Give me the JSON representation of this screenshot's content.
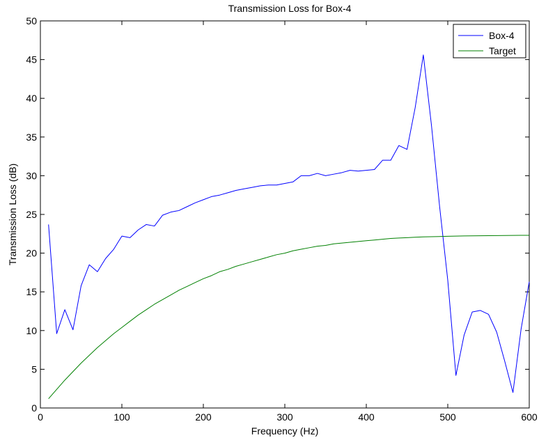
{
  "chart_data": {
    "type": "line",
    "title": "Transmission Loss for Box-4",
    "xlabel": "Frequency (Hz)",
    "ylabel": "Transmission Loss (dB)",
    "xlim": [
      0,
      600
    ],
    "ylim": [
      0,
      50
    ],
    "xticks": [
      0,
      100,
      200,
      300,
      400,
      500,
      600
    ],
    "yticks": [
      0,
      5,
      10,
      15,
      20,
      25,
      30,
      35,
      40,
      45,
      50
    ],
    "grid": false,
    "legend_position": "top-right",
    "series": [
      {
        "name": "Box-4",
        "color": "#0000ff",
        "x": [
          10,
          20,
          30,
          40,
          50,
          60,
          70,
          80,
          90,
          100,
          110,
          120,
          130,
          140,
          150,
          160,
          170,
          180,
          190,
          200,
          210,
          220,
          230,
          240,
          250,
          260,
          270,
          280,
          290,
          300,
          310,
          320,
          330,
          340,
          350,
          360,
          370,
          380,
          390,
          400,
          410,
          420,
          430,
          440,
          450,
          460,
          470,
          480,
          490,
          500,
          510,
          520,
          530,
          540,
          550,
          560,
          570,
          580,
          590,
          600
        ],
        "y": [
          23.7,
          9.6,
          12.7,
          10.1,
          15.8,
          18.5,
          17.6,
          19.3,
          20.5,
          22.2,
          22.0,
          23.0,
          23.7,
          23.5,
          24.9,
          25.3,
          25.5,
          26.0,
          26.5,
          26.9,
          27.3,
          27.5,
          27.8,
          28.1,
          28.3,
          28.5,
          28.7,
          28.8,
          28.8,
          29.0,
          29.2,
          30.0,
          30.0,
          30.3,
          30.0,
          30.2,
          30.4,
          30.7,
          30.6,
          30.7,
          30.8,
          32.0,
          32.0,
          33.9,
          33.4,
          38.8,
          45.6,
          36.5,
          26.0,
          16.5,
          4.2,
          9.4,
          12.4,
          12.6,
          12.1,
          9.8,
          6.0,
          2.0,
          10.2,
          16.3
        ]
      },
      {
        "name": "Target",
        "color": "#008000",
        "x": [
          10,
          20,
          30,
          40,
          50,
          60,
          70,
          80,
          90,
          100,
          110,
          120,
          130,
          140,
          150,
          160,
          170,
          180,
          190,
          200,
          210,
          220,
          230,
          240,
          250,
          260,
          270,
          280,
          290,
          300,
          310,
          320,
          330,
          340,
          350,
          360,
          370,
          380,
          390,
          400,
          410,
          420,
          430,
          440,
          450,
          460,
          470,
          480,
          490,
          500,
          510,
          520,
          530,
          540,
          550,
          560,
          570,
          580,
          590,
          600
        ],
        "y": [
          1.2,
          2.4,
          3.6,
          4.7,
          5.8,
          6.8,
          7.8,
          8.7,
          9.6,
          10.4,
          11.2,
          12.0,
          12.7,
          13.4,
          14.0,
          14.6,
          15.2,
          15.7,
          16.2,
          16.7,
          17.1,
          17.6,
          17.9,
          18.3,
          18.6,
          18.9,
          19.2,
          19.5,
          19.8,
          20.0,
          20.3,
          20.5,
          20.7,
          20.9,
          21.0,
          21.2,
          21.3,
          21.4,
          21.5,
          21.6,
          21.7,
          21.8,
          21.9,
          21.95,
          22.0,
          22.05,
          22.1,
          22.12,
          22.15,
          22.18,
          22.2,
          22.22,
          22.24,
          22.25,
          22.26,
          22.27,
          22.28,
          22.29,
          22.3,
          22.3
        ]
      }
    ]
  }
}
